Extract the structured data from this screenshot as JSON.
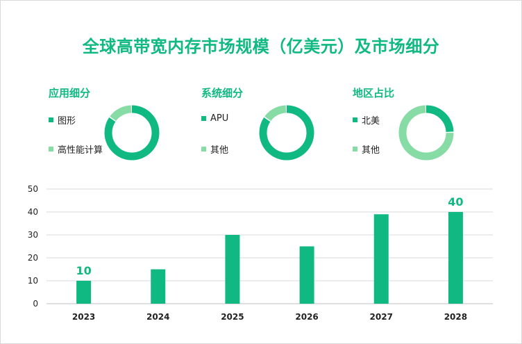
{
  "title": "全球高带宽内存市场规模（亿美元）及市场细分",
  "colors": {
    "primary": "#10b981",
    "secondary": "#86dca4",
    "grid": "#d9d9d9",
    "text": "#222222"
  },
  "segments": [
    {
      "title": "应用细分",
      "type": "pie",
      "items": [
        {
          "label": "图形",
          "value": 85,
          "color": "#10b981"
        },
        {
          "label": "高性能计算",
          "value": 15,
          "color": "#86dca4"
        }
      ]
    },
    {
      "title": "系统细分",
      "type": "pie",
      "items": [
        {
          "label": "APU",
          "value": 85,
          "color": "#10b981"
        },
        {
          "label": "其他",
          "value": 15,
          "color": "#86dca4"
        }
      ]
    },
    {
      "title": "地区占比",
      "type": "pie",
      "items": [
        {
          "label": "北美",
          "value": 25,
          "color": "#10b981"
        },
        {
          "label": "其他",
          "value": 75,
          "color": "#86dca4"
        }
      ]
    }
  ],
  "chart_data": {
    "type": "bar",
    "categories": [
      "2023",
      "2024",
      "2025",
      "2026",
      "2027",
      "2028"
    ],
    "values": [
      10,
      15,
      30,
      25,
      39,
      40
    ],
    "data_labels": [
      "10",
      "",
      "",
      "",
      "",
      "40"
    ],
    "yticks": [
      "0",
      "10",
      "20",
      "30",
      "40",
      "50"
    ],
    "ylim": [
      0,
      50
    ],
    "grid": true,
    "xlabel": "",
    "ylabel": ""
  }
}
